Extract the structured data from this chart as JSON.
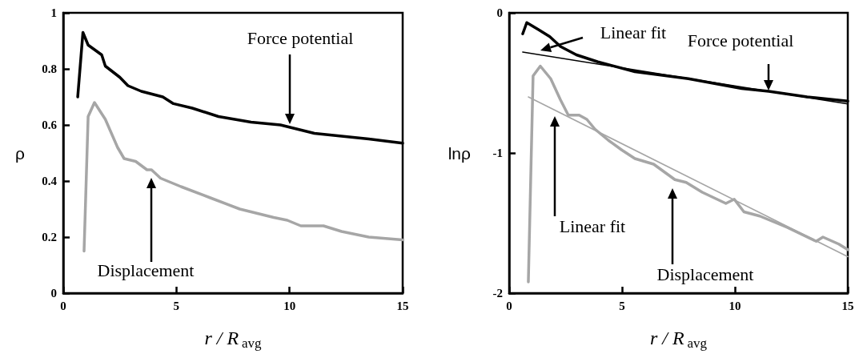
{
  "chart_data": [
    {
      "type": "line",
      "xlabel": "r / R$_{avg}$",
      "ylabel": "ρ",
      "xlim": [
        0,
        15
      ],
      "xticks": [
        0,
        5,
        10,
        15
      ],
      "ylim": [
        0,
        1
      ],
      "yticks": [
        0,
        0.2,
        0.4,
        0.6,
        0.8,
        1
      ],
      "grid": false,
      "marker": "none",
      "line_style": "solid",
      "series": [
        {
          "color": "#000000",
          "x": [
            0.64,
            0.87,
            1.1,
            1.7,
            1.86,
            2.5,
            2.86,
            3.45,
            4.4,
            4.87,
            5.7,
            6.86,
            8.3,
            9.6,
            11.1,
            13.5,
            15
          ],
          "values": [
            0.7,
            0.93,
            0.885,
            0.85,
            0.81,
            0.77,
            0.74,
            0.72,
            0.7,
            0.676,
            0.66,
            0.63,
            0.61,
            0.6,
            0.57,
            0.55,
            0.535
          ]
        },
        {
          "color": "#a6a6a6",
          "x": [
            0.92,
            1.1,
            1.38,
            1.86,
            2.4,
            2.69,
            3.2,
            3.7,
            3.9,
            4.3,
            5.2,
            6.5,
            7.8,
            9.3,
            9.9,
            10.5,
            11.5,
            12.3,
            13.5,
            15
          ],
          "values": [
            0.15,
            0.63,
            0.68,
            0.62,
            0.52,
            0.48,
            0.47,
            0.44,
            0.44,
            0.41,
            0.38,
            0.34,
            0.3,
            0.27,
            0.26,
            0.24,
            0.24,
            0.22,
            0.2,
            0.19
          ]
        }
      ],
      "annotations": [
        "Force potential",
        "Displacement"
      ]
    },
    {
      "type": "line",
      "xlabel": "r / R$_{avg}$",
      "ylabel": "lnρ",
      "xlim": [
        0,
        15
      ],
      "xticks": [
        0,
        5,
        10,
        15
      ],
      "ylim": [
        -2,
        0
      ],
      "yticks": [
        -2,
        -1,
        0
      ],
      "grid": false,
      "marker": "none",
      "line_style": "solid",
      "series": [
        {
          "color": "#000000",
          "x": [
            0.6,
            0.78,
            1.3,
            1.8,
            2.27,
            2.98,
            3.93,
            5.57,
            7.94,
            10.3,
            11.5,
            13.2,
            15
          ],
          "values": [
            -0.15,
            -0.07,
            -0.12,
            -0.17,
            -0.24,
            -0.3,
            -0.35,
            -0.42,
            -0.47,
            -0.54,
            -0.56,
            -0.6,
            -0.63
          ]
        },
        {
          "color": "#000000",
          "x": [
            0.6,
            15
          ],
          "values": [
            -0.28,
            -0.65
          ]
        },
        {
          "color": "#a6a6a6",
          "x": [
            0.85,
            1.06,
            1.38,
            1.84,
            2.27,
            2.62,
            3.1,
            3.44,
            3.8,
            4.4,
            5.0,
            5.57,
            6.4,
            7.34,
            7.84,
            8.55,
            9.6,
            9.97,
            10.4,
            11.1,
            12.3,
            13.6,
            13.9,
            14.6,
            15
          ],
          "values": [
            -1.92,
            -0.45,
            -0.38,
            -0.47,
            -0.62,
            -0.73,
            -0.73,
            -0.76,
            -0.83,
            -0.91,
            -0.98,
            -1.04,
            -1.08,
            -1.19,
            -1.21,
            -1.28,
            -1.36,
            -1.33,
            -1.42,
            -1.45,
            -1.53,
            -1.63,
            -1.6,
            -1.65,
            -1.69
          ]
        },
        {
          "color": "#a6a6a6",
          "x": [
            0.85,
            15
          ],
          "values": [
            -0.6,
            -1.74
          ]
        }
      ],
      "annotations": [
        "Linear fit",
        "Force potential",
        "Linear fit",
        "Displacement"
      ]
    }
  ]
}
